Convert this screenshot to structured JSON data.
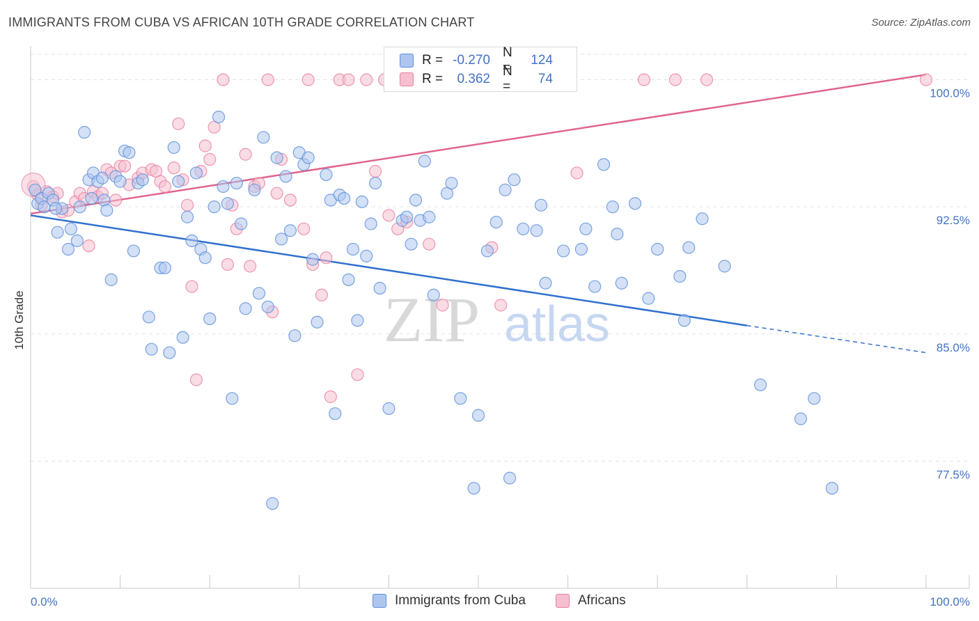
{
  "title": "IMMIGRANTS FROM CUBA VS AFRICAN 10TH GRADE CORRELATION CHART",
  "source": "Source: ZipAtlas.com",
  "watermark": {
    "zip": "ZIP",
    "atlas": "atlas"
  },
  "legend": {
    "rows": [
      {
        "r_label": "R =",
        "r_value": "-0.270",
        "n_label": "N =",
        "n_value": "124"
      },
      {
        "r_label": "R =",
        "r_value": "0.362",
        "n_label": "N =",
        "n_value": "74"
      }
    ]
  },
  "colors": {
    "blue_fill": "#aec6ef",
    "blue_stroke": "#5b8fd9",
    "blue_line": "#2f6fce",
    "pink_fill": "#f6bfd0",
    "pink_stroke": "#e8809f",
    "pink_line": "#e0648d",
    "tick_text": "#4472c4",
    "grid": "#e3e3e3"
  },
  "chart_data": {
    "type": "scatter",
    "title": "IMMIGRANTS FROM CUBA VS AFRICAN 10TH GRADE CORRELATION CHART",
    "xlabel": "",
    "ylabel": "10th Grade",
    "xlim": [
      0,
      100
    ],
    "ylim": [
      70.0,
      101.5
    ],
    "x_tick_labels": [
      "0.0%",
      "100.0%"
    ],
    "y_ticks": [
      77.5,
      85.0,
      92.5,
      100.0
    ],
    "y_tick_labels": [
      "77.5%",
      "85.0%",
      "92.5%",
      "100.0%"
    ],
    "grid": "horizontal dashed",
    "legend_position": "bottom",
    "series": [
      {
        "name": "Immigrants from Cuba",
        "r": -0.27,
        "n": 124,
        "trend": {
          "x0": 0,
          "y0": 92.0,
          "x1": 80,
          "y1": 85.5,
          "dashed_to_x": 100,
          "dashed_to_y": 83.9
        },
        "points": [
          [
            0.5,
            93.5
          ],
          [
            0.8,
            92.7
          ],
          [
            1.2,
            93.0
          ],
          [
            1.5,
            92.5
          ],
          [
            2.0,
            93.3
          ],
          [
            2.5,
            92.9
          ],
          [
            3.0,
            91.0
          ],
          [
            3.5,
            92.4
          ],
          [
            4.2,
            90.0
          ],
          [
            4.5,
            91.2
          ],
          [
            5.2,
            90.5
          ],
          [
            5.5,
            92.5
          ],
          [
            6.0,
            96.9
          ],
          [
            6.5,
            94.1
          ],
          [
            7.0,
            94.5
          ],
          [
            7.5,
            94.0
          ],
          [
            8.0,
            94.2
          ],
          [
            8.2,
            92.9
          ],
          [
            8.5,
            92.3
          ],
          [
            9.0,
            88.2
          ],
          [
            9.5,
            94.3
          ],
          [
            10.5,
            95.8
          ],
          [
            11.0,
            95.7
          ],
          [
            11.5,
            89.9
          ],
          [
            12.0,
            93.9
          ],
          [
            12.5,
            94.1
          ],
          [
            13.2,
            86.0
          ],
          [
            13.5,
            84.1
          ],
          [
            14.5,
            88.9
          ],
          [
            15.0,
            88.9
          ],
          [
            15.5,
            83.9
          ],
          [
            16.0,
            96.0
          ],
          [
            16.5,
            94.0
          ],
          [
            17.0,
            84.8
          ],
          [
            17.5,
            91.9
          ],
          [
            18.0,
            90.5
          ],
          [
            18.5,
            94.5
          ],
          [
            19.0,
            90.0
          ],
          [
            19.5,
            89.5
          ],
          [
            20.0,
            85.9
          ],
          [
            21.0,
            97.8
          ],
          [
            21.5,
            93.7
          ],
          [
            22.0,
            92.7
          ],
          [
            22.5,
            81.2
          ],
          [
            23.0,
            93.9
          ],
          [
            23.5,
            91.5
          ],
          [
            24.0,
            86.5
          ],
          [
            25.0,
            93.5
          ],
          [
            25.5,
            87.4
          ],
          [
            26.0,
            96.6
          ],
          [
            26.5,
            86.6
          ],
          [
            27.0,
            75.0
          ],
          [
            27.5,
            95.4
          ],
          [
            28.0,
            90.6
          ],
          [
            28.5,
            94.3
          ],
          [
            29.0,
            91.1
          ],
          [
            29.5,
            84.9
          ],
          [
            30.0,
            95.7
          ],
          [
            30.5,
            95.0
          ],
          [
            31.0,
            95.4
          ],
          [
            31.5,
            89.4
          ],
          [
            32.0,
            85.7
          ],
          [
            33.0,
            94.4
          ],
          [
            33.5,
            92.9
          ],
          [
            34.0,
            80.3
          ],
          [
            34.5,
            93.2
          ],
          [
            35.0,
            93.0
          ],
          [
            35.5,
            88.2
          ],
          [
            36.0,
            90.0
          ],
          [
            36.5,
            85.8
          ],
          [
            37.5,
            89.6
          ],
          [
            38.0,
            91.5
          ],
          [
            38.5,
            93.9
          ],
          [
            39.0,
            87.7
          ],
          [
            40.0,
            80.6
          ],
          [
            41.5,
            91.7
          ],
          [
            42.0,
            91.9
          ],
          [
            42.5,
            90.3
          ],
          [
            43.0,
            92.9
          ],
          [
            43.5,
            91.7
          ],
          [
            44.0,
            95.2
          ],
          [
            44.5,
            91.9
          ],
          [
            45.0,
            87.3
          ],
          [
            46.5,
            93.3
          ],
          [
            47.0,
            93.9
          ],
          [
            48.0,
            81.2
          ],
          [
            49.5,
            75.9
          ],
          [
            50.0,
            80.2
          ],
          [
            51.0,
            89.9
          ],
          [
            52.0,
            91.6
          ],
          [
            53.0,
            93.5
          ],
          [
            53.5,
            76.5
          ],
          [
            54.0,
            94.1
          ],
          [
            55.0,
            91.2
          ],
          [
            56.5,
            91.1
          ],
          [
            57.0,
            92.6
          ],
          [
            57.5,
            88.0
          ],
          [
            59.5,
            89.9
          ],
          [
            61.5,
            90.0
          ],
          [
            62.0,
            91.2
          ],
          [
            63.0,
            87.8
          ],
          [
            64.0,
            95.0
          ],
          [
            65.0,
            92.5
          ],
          [
            65.5,
            90.9
          ],
          [
            66.0,
            88.0
          ],
          [
            67.5,
            92.7
          ],
          [
            69.0,
            87.1
          ],
          [
            70.0,
            90.0
          ],
          [
            72.5,
            88.4
          ],
          [
            73.0,
            85.8
          ],
          [
            73.5,
            90.1
          ],
          [
            75.0,
            91.8
          ],
          [
            77.5,
            89.0
          ],
          [
            81.5,
            82.0
          ],
          [
            86.0,
            80.0
          ],
          [
            87.5,
            81.2
          ],
          [
            89.5,
            75.9
          ],
          [
            2.8,
            92.4
          ],
          [
            6.8,
            93.0
          ],
          [
            10.0,
            94.0
          ],
          [
            20.5,
            92.5
          ],
          [
            37.0,
            92.8
          ]
        ]
      },
      {
        "name": "Africans",
        "r": 0.362,
        "n": 74,
        "trend": {
          "x0": 0,
          "y0": 92.1,
          "x1": 100,
          "y1": 100.3
        },
        "points": [
          [
            0.3,
            93.7
          ],
          [
            0.8,
            93.2
          ],
          [
            1.2,
            92.6
          ],
          [
            1.8,
            93.4
          ],
          [
            2.5,
            93.1
          ],
          [
            3.0,
            93.3
          ],
          [
            3.5,
            92.2
          ],
          [
            4.2,
            92.3
          ],
          [
            5.0,
            92.8
          ],
          [
            5.5,
            93.3
          ],
          [
            6.0,
            93.0
          ],
          [
            6.5,
            90.2
          ],
          [
            7.0,
            93.4
          ],
          [
            7.5,
            93.1
          ],
          [
            8.0,
            93.3
          ],
          [
            8.5,
            94.7
          ],
          [
            9.0,
            94.5
          ],
          [
            9.5,
            92.9
          ],
          [
            10.0,
            94.9
          ],
          [
            10.5,
            94.9
          ],
          [
            11.0,
            93.8
          ],
          [
            12.0,
            94.2
          ],
          [
            12.5,
            94.5
          ],
          [
            13.5,
            94.7
          ],
          [
            14.0,
            94.6
          ],
          [
            14.5,
            94.0
          ],
          [
            15.0,
            93.7
          ],
          [
            16.0,
            94.8
          ],
          [
            16.5,
            97.4
          ],
          [
            17.0,
            94.1
          ],
          [
            17.5,
            92.6
          ],
          [
            18.0,
            87.8
          ],
          [
            18.5,
            82.3
          ],
          [
            19.0,
            94.6
          ],
          [
            19.5,
            96.1
          ],
          [
            20.0,
            95.3
          ],
          [
            20.5,
            97.2
          ],
          [
            21.5,
            100.0
          ],
          [
            22.0,
            89.1
          ],
          [
            22.5,
            92.6
          ],
          [
            23.0,
            91.2
          ],
          [
            24.0,
            95.6
          ],
          [
            24.5,
            89.0
          ],
          [
            25.0,
            93.7
          ],
          [
            25.5,
            93.9
          ],
          [
            26.5,
            100.0
          ],
          [
            27.0,
            86.3
          ],
          [
            27.5,
            93.3
          ],
          [
            28.0,
            95.3
          ],
          [
            29.0,
            92.9
          ],
          [
            30.5,
            91.2
          ],
          [
            31.0,
            100.0
          ],
          [
            31.5,
            89.1
          ],
          [
            32.5,
            87.3
          ],
          [
            33.0,
            89.5
          ],
          [
            33.5,
            81.3
          ],
          [
            34.5,
            100.0
          ],
          [
            35.5,
            100.0
          ],
          [
            36.5,
            82.6
          ],
          [
            37.5,
            100.0
          ],
          [
            38.5,
            94.6
          ],
          [
            39.5,
            100.0
          ],
          [
            40.0,
            92.0
          ],
          [
            41.0,
            91.2
          ],
          [
            42.0,
            91.6
          ],
          [
            44.5,
            90.3
          ],
          [
            46.0,
            86.7
          ],
          [
            51.5,
            90.1
          ],
          [
            52.5,
            86.7
          ],
          [
            61.0,
            94.5
          ],
          [
            68.5,
            100.0
          ],
          [
            72.0,
            100.0
          ],
          [
            75.5,
            100.0
          ],
          [
            100.0,
            100.0
          ]
        ]
      }
    ]
  },
  "bottom_legend": [
    "Immigrants from Cuba",
    "Africans"
  ]
}
